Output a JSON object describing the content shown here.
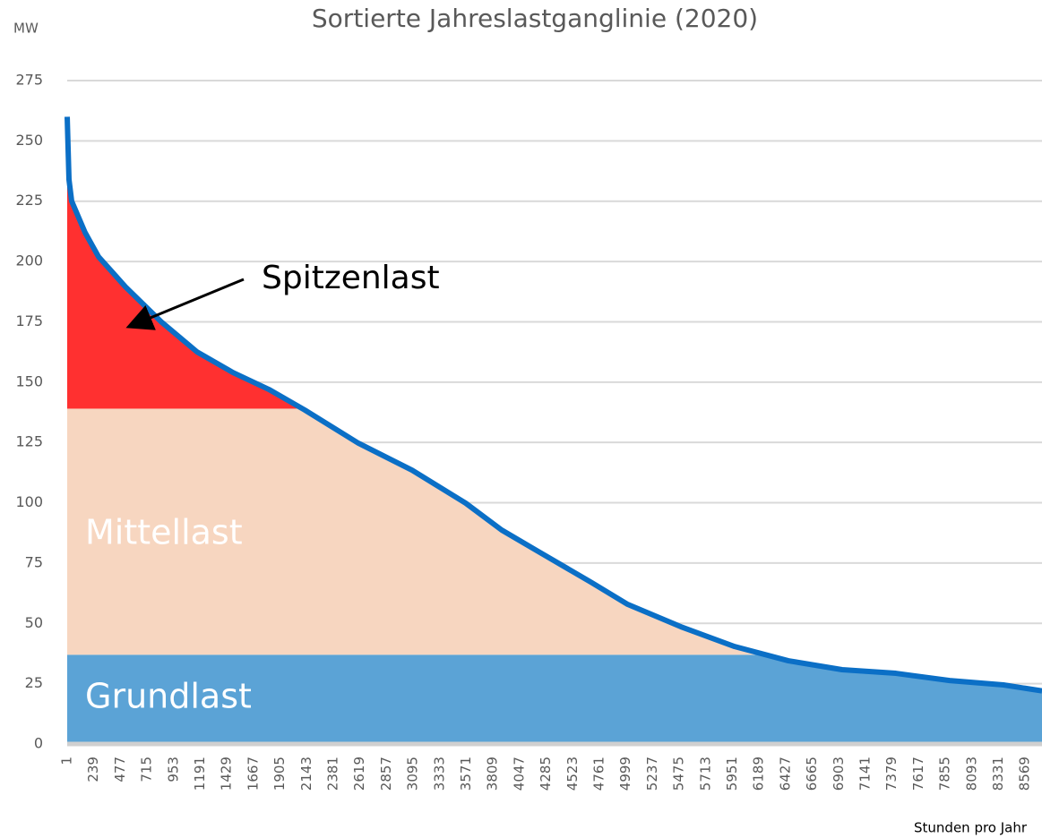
{
  "chart_data": {
    "type": "line",
    "title": "Sortierte Jahreslastganglinie (2020)",
    "y_label": "MW",
    "x_label": "Stunden pro Jahr",
    "x": [
      1,
      17,
      41,
      161,
      281,
      522,
      842,
      1163,
      1483,
      1804,
      2124,
      2605,
      3086,
      3566,
      3887,
      4207,
      4688,
      5009,
      5490,
      5971,
      6452,
      6932,
      7413,
      7894,
      8375,
      8720
    ],
    "series": [
      {
        "color": "#0b6fc6",
        "values": [
          260,
          234,
          225,
          212,
          202,
          189.5,
          175,
          162.5,
          154,
          147,
          138.5,
          124.7,
          113.5,
          99.8,
          88.7,
          80,
          67,
          58,
          48.6,
          40.4,
          34.5,
          30.8,
          29.3,
          26.3,
          24.5,
          22
        ]
      }
    ],
    "bands": [
      {
        "label": "Grundlast",
        "value": 37,
        "color": "#5ba3d6"
      },
      {
        "label": "Mittellast",
        "value": 139,
        "color": "#f7d6c0"
      },
      {
        "label": "Spitzenlast",
        "color": "#ff3030"
      }
    ],
    "xlim": [
      1,
      8760
    ],
    "xticks": [
      1,
      239,
      477,
      715,
      953,
      1191,
      1429,
      1667,
      1905,
      2143,
      2381,
      2619,
      2857,
      3095,
      3333,
      3571,
      3809,
      4047,
      4285,
      4523,
      4761,
      4999,
      5237,
      5475,
      5713,
      5951,
      6189,
      6427,
      6665,
      6903,
      7141,
      7379,
      7617,
      7855,
      8093,
      8331,
      8569
    ],
    "ylim": [
      0,
      275
    ],
    "yticks": [
      0,
      25,
      50,
      75,
      100,
      125,
      150,
      175,
      200,
      225,
      250,
      275
    ],
    "grid": true
  }
}
